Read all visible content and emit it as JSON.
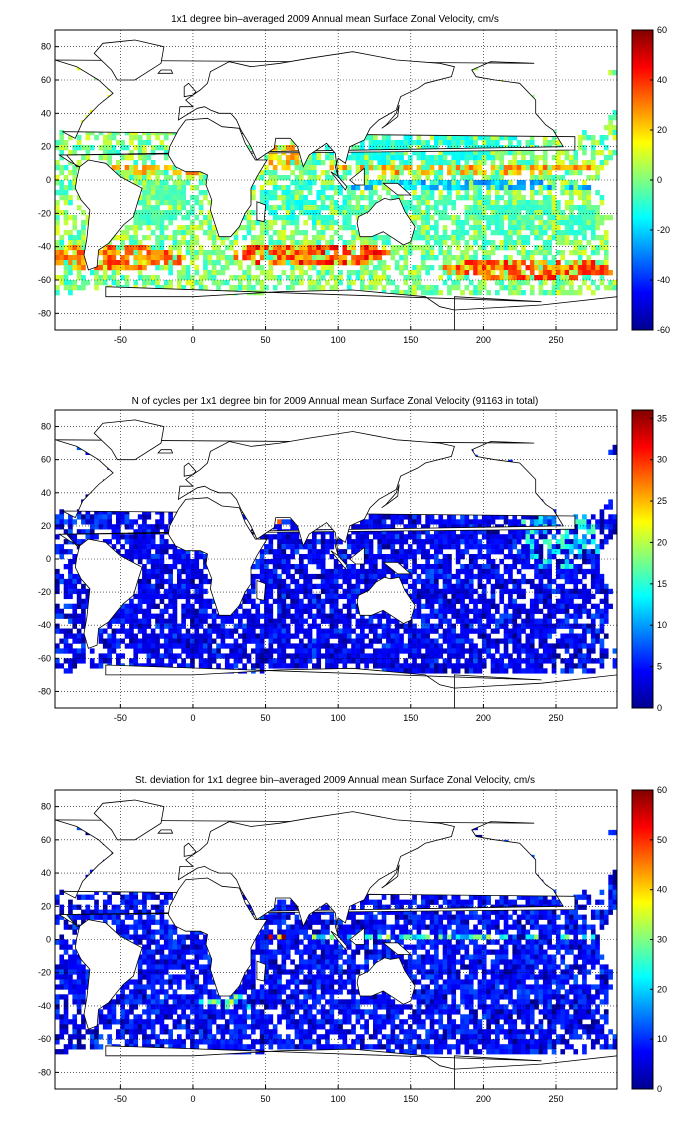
{
  "chart_data": [
    {
      "type": "heatmap",
      "title": "1x1 degree bin–averaged 2009 Annual mean Surface Zonal Velocity, cm/s",
      "xlabel": "",
      "ylabel": "",
      "xlim": [
        -95,
        292
      ],
      "ylim": [
        -90,
        90
      ],
      "x_ticks": [
        -50,
        0,
        50,
        100,
        150,
        200,
        250
      ],
      "y_ticks": [
        -80,
        -60,
        -40,
        -20,
        0,
        20,
        40,
        60,
        80
      ],
      "grid": true,
      "colorbar": {
        "min": -60,
        "max": 60,
        "ticks": [
          -60,
          -40,
          -20,
          0,
          20,
          40,
          60
        ],
        "colormap": "jet"
      },
      "patterns": [
        {
          "lon": -60,
          "lat": -48,
          "w": 110,
          "h": 14,
          "v": 30,
          "fill": 0.8
        },
        {
          "lon": 80,
          "lat": -46,
          "w": 110,
          "h": 14,
          "v": 35,
          "fill": 0.78
        },
        {
          "lon": 230,
          "lat": -55,
          "w": 120,
          "h": 12,
          "v": 32,
          "fill": 0.8
        },
        {
          "lon": 140,
          "lat": 37,
          "w": 25,
          "h": 6,
          "v": 45,
          "fill": 0.8
        },
        {
          "lon": -65,
          "lat": 38,
          "w": 35,
          "h": 8,
          "v": 28,
          "fill": 0.7
        },
        {
          "lon": 185,
          "lat": 5,
          "w": 200,
          "h": 5,
          "v": 26,
          "fill": 0.6
        },
        {
          "lon": 180,
          "lat": -5,
          "w": 200,
          "h": 5,
          "v": -22,
          "fill": 0.6
        },
        {
          "lon": -20,
          "lat": 5,
          "w": 80,
          "h": 5,
          "v": 24,
          "fill": 0.6
        },
        {
          "lon": 150,
          "lat": 20,
          "w": 150,
          "h": 25,
          "v": -12,
          "fill": 0.5
        },
        {
          "lon": 190,
          "lat": -25,
          "w": 180,
          "h": 30,
          "v": -8,
          "fill": 0.45
        },
        {
          "lon": 75,
          "lat": -15,
          "w": 60,
          "h": 25,
          "v": -12,
          "fill": 0.5
        },
        {
          "lon": -30,
          "lat": 48,
          "w": 60,
          "h": 25,
          "v": 14,
          "fill": 0.55
        },
        {
          "lon": -30,
          "lat": -15,
          "w": 70,
          "h": 25,
          "v": -6,
          "fill": 0.5
        },
        {
          "lon": 60,
          "lat": 12,
          "w": 25,
          "h": 15,
          "v": 22,
          "fill": 0.5
        }
      ]
    },
    {
      "type": "heatmap",
      "title": "N of cycles per 1x1 degree bin for 2009 Annual mean Surface Zonal Velocity (91163 in total)",
      "xlabel": "",
      "ylabel": "",
      "xlim": [
        -95,
        292
      ],
      "ylim": [
        -90,
        90
      ],
      "x_ticks": [
        -50,
        0,
        50,
        100,
        150,
        200,
        250
      ],
      "y_ticks": [
        -80,
        -60,
        -40,
        -20,
        0,
        20,
        40,
        60,
        80
      ],
      "grid": true,
      "colorbar": {
        "min": 0,
        "max": 36,
        "ticks": [
          0,
          5,
          10,
          15,
          20,
          25,
          30,
          35
        ],
        "colormap": "jet"
      },
      "patterns": [
        {
          "lon": 100,
          "lat": -20,
          "w": 380,
          "h": 140,
          "v": 4,
          "fill": 0.5
        },
        {
          "lon": 55,
          "lat": 22,
          "w": 12,
          "h": 6,
          "v": 28,
          "fill": 0.7
        },
        {
          "lon": 140,
          "lat": 35,
          "w": 20,
          "h": 8,
          "v": 14,
          "fill": 0.6
        },
        {
          "lon": 250,
          "lat": 10,
          "w": 60,
          "h": 40,
          "v": 12,
          "fill": 0.4
        },
        {
          "lon": -30,
          "lat": 40,
          "w": 40,
          "h": 20,
          "v": 10,
          "fill": 0.4
        }
      ]
    },
    {
      "type": "heatmap",
      "title": "St. deviation for 1x1 degree bin–averaged 2009 Annual mean Surface Zonal Velocity, cm/s",
      "xlabel": "",
      "ylabel": "",
      "xlim": [
        -95,
        292
      ],
      "ylim": [
        -90,
        90
      ],
      "x_ticks": [
        -50,
        0,
        50,
        100,
        150,
        200,
        250
      ],
      "y_ticks": [
        -80,
        -60,
        -40,
        -20,
        0,
        20,
        40,
        60,
        80
      ],
      "grid": true,
      "colorbar": {
        "min": 0,
        "max": 60,
        "ticks": [
          0,
          10,
          20,
          30,
          40,
          50,
          60
        ],
        "colormap": "jet"
      },
      "patterns": [
        {
          "lon": 100,
          "lat": -20,
          "w": 380,
          "h": 140,
          "v": 8,
          "fill": 0.5
        },
        {
          "lon": 140,
          "lat": 37,
          "w": 25,
          "h": 8,
          "v": 40,
          "fill": 0.7
        },
        {
          "lon": 180,
          "lat": 0,
          "w": 200,
          "h": 6,
          "v": 25,
          "fill": 0.6
        },
        {
          "lon": 60,
          "lat": 0,
          "w": 20,
          "h": 5,
          "v": 50,
          "fill": 0.8
        },
        {
          "lon": 20,
          "lat": -40,
          "w": 40,
          "h": 10,
          "v": 30,
          "fill": 0.6
        },
        {
          "lon": -50,
          "lat": 40,
          "w": 40,
          "h": 10,
          "v": 20,
          "fill": 0.5
        }
      ]
    }
  ]
}
